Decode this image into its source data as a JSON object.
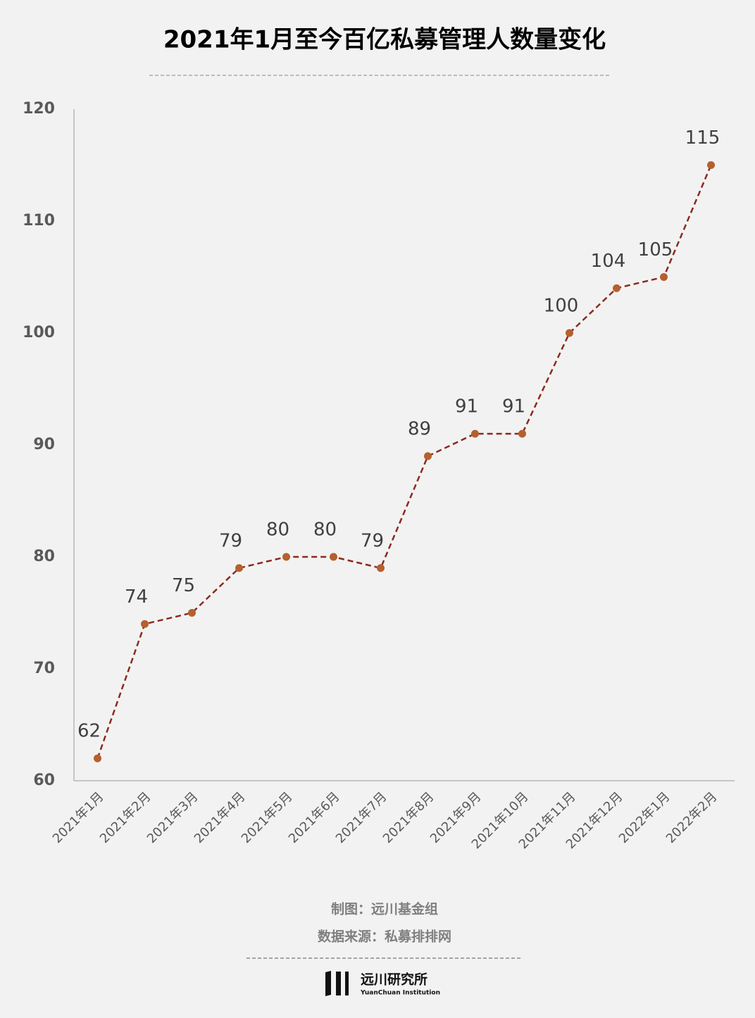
{
  "chart_data": {
    "type": "line",
    "title": "2021年1月至今百亿私募管理人数量变化",
    "categories": [
      "2021年1月",
      "2021年2月",
      "2021年3月",
      "2021年4月",
      "2021年5月",
      "2021年6月",
      "2021年7月",
      "2021年8月",
      "2021年9月",
      "2021年10月",
      "2021年11月",
      "2021年12月",
      "2022年1月",
      "2022年2月"
    ],
    "values": [
      62,
      74,
      75,
      79,
      80,
      80,
      79,
      89,
      91,
      91,
      100,
      104,
      105,
      115
    ],
    "color": "#8b2a1f",
    "marker_color": "#b5602e",
    "line_style": "dashed",
    "ylim": [
      60,
      120
    ],
    "yticks": [
      60,
      70,
      80,
      90,
      100,
      110,
      120
    ],
    "grid": false
  },
  "footer": {
    "credit": "制图：远川基金组",
    "source": "数据来源：私募排排网",
    "brand": "远川研究所",
    "brand_en": "YuanChuan Institution"
  }
}
